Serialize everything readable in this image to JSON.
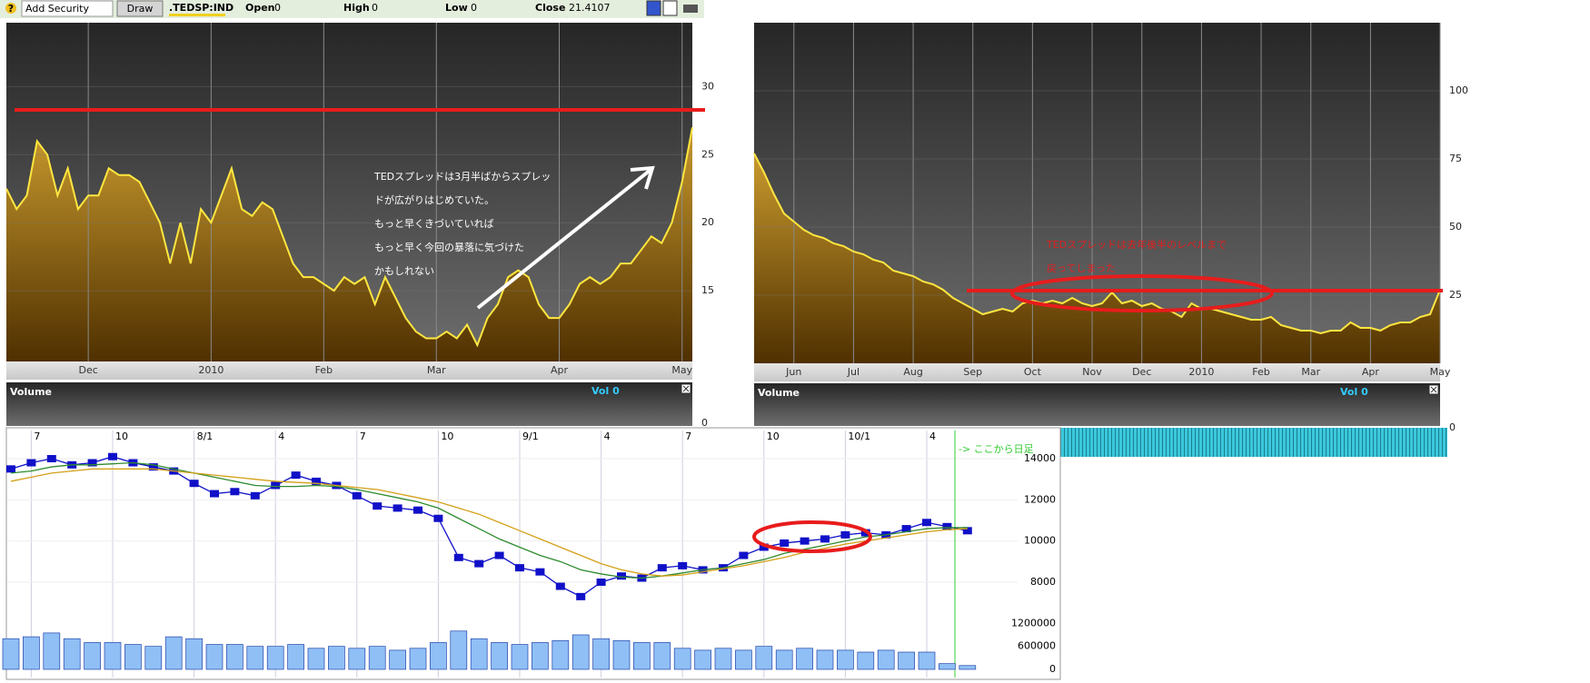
{
  "toolbar": {
    "add_security": "Add Security",
    "draw": "Draw",
    "ticker": ".TEDSP:IND",
    "open_label": "Open",
    "open": 0,
    "high_label": "High",
    "high": 0,
    "low_label": "Low",
    "low": 0,
    "close_label": "Close",
    "close": 21.4107
  },
  "chart_data": [
    {
      "type": "area",
      "color": "#ffe640",
      "grid": true,
      "categories": [
        null,
        null,
        null,
        null,
        null,
        null,
        null,
        null,
        "Dec",
        null,
        null,
        null,
        null,
        null,
        null,
        null,
        null,
        null,
        null,
        null,
        "2010",
        null,
        null,
        null,
        null,
        null,
        null,
        null,
        null,
        null,
        null,
        "Feb",
        null,
        null,
        null,
        null,
        null,
        null,
        null,
        null,
        null,
        null,
        "Mar",
        null,
        null,
        null,
        null,
        null,
        null,
        null,
        null,
        null,
        null,
        null,
        "Apr",
        null,
        null,
        null,
        null,
        null,
        null,
        null,
        null,
        null,
        null,
        null,
        "May",
        null
      ],
      "values": [
        22.5,
        21,
        22,
        26,
        25,
        22,
        24,
        21,
        22,
        22,
        24,
        23.5,
        23.5,
        23,
        21.5,
        20,
        17,
        20,
        17,
        21,
        20,
        22,
        24,
        21,
        20.5,
        21.5,
        21,
        19,
        17,
        16,
        16,
        15.5,
        15,
        16,
        15.5,
        16,
        14,
        16,
        14.5,
        13,
        12,
        11.5,
        11.5,
        12,
        11.5,
        12.5,
        11,
        13,
        14,
        16,
        16.5,
        16,
        14,
        13,
        13,
        14,
        15.5,
        16,
        15.5,
        16,
        17,
        17,
        18,
        19,
        18.5,
        20,
        23,
        27
      ],
      "ylim": [
        9.8,
        34.7
      ],
      "yticks": [
        15,
        20,
        25,
        30
      ],
      "annotation": [
        "TEDスプレッドは3月半ばからスプレッ",
        "ドが広がりはじめていた。",
        "もっと早くきづいていれば",
        "もっと早く今回の暴落に気づけた",
        "かもしれない"
      ],
      "volume": {
        "title": "Volume",
        "label": "Vol 0",
        "yticks": [
          0
        ]
      }
    },
    {
      "type": "area",
      "color": "#ffe640",
      "grid": true,
      "categories": [
        null,
        null,
        null,
        null,
        "Jun",
        null,
        null,
        null,
        null,
        null,
        "Jul",
        null,
        null,
        null,
        null,
        null,
        "Aug",
        null,
        null,
        null,
        null,
        null,
        "Sep",
        null,
        null,
        null,
        null,
        null,
        "Oct",
        null,
        null,
        null,
        null,
        null,
        "Nov",
        null,
        null,
        null,
        null,
        "Dec",
        null,
        null,
        null,
        null,
        null,
        "2010",
        null,
        null,
        null,
        null,
        null,
        "Feb",
        null,
        null,
        null,
        null,
        "Mar",
        null,
        null,
        null,
        null,
        null,
        "Apr",
        null,
        null,
        null,
        null,
        null,
        null,
        "May"
      ],
      "values": [
        77,
        70,
        62,
        55,
        52,
        49,
        47,
        46,
        44,
        43,
        41,
        40,
        38,
        37,
        34,
        33,
        32,
        30,
        29,
        27,
        24,
        22,
        20,
        18,
        19,
        20,
        19,
        22,
        23,
        22,
        23,
        22,
        24,
        22,
        21,
        22,
        26,
        22,
        23,
        21,
        22,
        20,
        19,
        17,
        22,
        20,
        20,
        19,
        18,
        17,
        16,
        16,
        17,
        14,
        13,
        12,
        12,
        11,
        12,
        12,
        15,
        13,
        13,
        12,
        14,
        15,
        15,
        17,
        18,
        27
      ],
      "ylim": [
        0,
        125
      ],
      "yticks": [
        25,
        50,
        75,
        100
      ],
      "annotation": [
        "TEDスプレッドは去年後半のレベルまで",
        "戻ってしまった"
      ],
      "volume": {
        "title": "Volume",
        "label": "Vol 0",
        "yticks": [
          0
        ]
      }
    },
    {
      "type": "candlestick",
      "grid": true,
      "categories": [
        null,
        "7",
        null,
        null,
        null,
        "10",
        null,
        null,
        null,
        "8/1",
        null,
        null,
        null,
        "4",
        null,
        null,
        null,
        "7",
        null,
        null,
        null,
        "10",
        null,
        null,
        null,
        "9/1",
        null,
        null,
        null,
        "4",
        null,
        null,
        null,
        "7",
        null,
        null,
        null,
        "10",
        null,
        null,
        null,
        "10/1",
        null,
        null,
        null,
        "4",
        null,
        null
      ],
      "series": [
        {
          "color": "#1010c8",
          "marker": "square",
          "values": [
            13500,
            13800,
            14000,
            13700,
            13800,
            14100,
            13800,
            13600,
            13400,
            12800,
            12300,
            12400,
            12200,
            12700,
            13200,
            12900,
            12700,
            12200,
            11700,
            11600,
            11500,
            11100,
            9200,
            8900,
            9300,
            8700,
            8500,
            7800,
            7300,
            8000,
            8300,
            8200,
            8700,
            8800,
            8600,
            8700,
            9300,
            9700,
            9900,
            10000,
            10100,
            10300,
            10400,
            10300,
            10600,
            10900,
            10700,
            10500
          ]
        },
        {
          "color": "#2e8b2e",
          "values": [
            13300,
            13400,
            13600,
            13700,
            13700,
            13750,
            13800,
            13700,
            13500,
            13300,
            13100,
            12900,
            12700,
            12650,
            12650,
            12700,
            12650,
            12500,
            12300,
            12100,
            11900,
            11600,
            11100,
            10600,
            10100,
            9700,
            9300,
            9000,
            8600,
            8400,
            8250,
            8200,
            8300,
            8450,
            8600,
            8700,
            8900,
            9100,
            9400,
            9600,
            9800,
            10000,
            10200,
            10300,
            10450,
            10600,
            10650,
            10650
          ]
        },
        {
          "color": "#d4a017",
          "values": [
            12900,
            13100,
            13300,
            13400,
            13500,
            13500,
            13500,
            13500,
            13400,
            13300,
            13200,
            13100,
            13000,
            12900,
            12850,
            12800,
            12700,
            12600,
            12500,
            12300,
            12100,
            11900,
            11600,
            11300,
            10900,
            10500,
            10100,
            9700,
            9300,
            8900,
            8600,
            8400,
            8300,
            8350,
            8500,
            8650,
            8800,
            9000,
            9200,
            9450,
            9650,
            9850,
            10000,
            10150,
            10300,
            10450,
            10550,
            10600
          ]
        },
        {
          "color": "#8fbff5",
          "axis": "y2",
          "type": "bar",
          "values": [
            800000,
            850000,
            950000,
            800000,
            700000,
            700000,
            650000,
            600000,
            850000,
            800000,
            650000,
            650000,
            600000,
            600000,
            650000,
            550000,
            600000,
            550000,
            600000,
            500000,
            550000,
            700000,
            1000000,
            800000,
            700000,
            650000,
            700000,
            750000,
            900000,
            800000,
            750000,
            700000,
            700000,
            550000,
            500000,
            550000,
            500000,
            600000,
            500000,
            550000,
            500000,
            500000,
            450000,
            500000,
            450000,
            450000,
            150000,
            100000
          ]
        }
      ],
      "ylim": [
        6500,
        14750
      ],
      "yticks": [
        8000,
        10000,
        12000,
        14000
      ],
      "y2lim": [
        0,
        1350000
      ],
      "y2ticks": [
        0,
        600000,
        1200000
      ],
      "annotation": "-> ここから日足"
    }
  ]
}
